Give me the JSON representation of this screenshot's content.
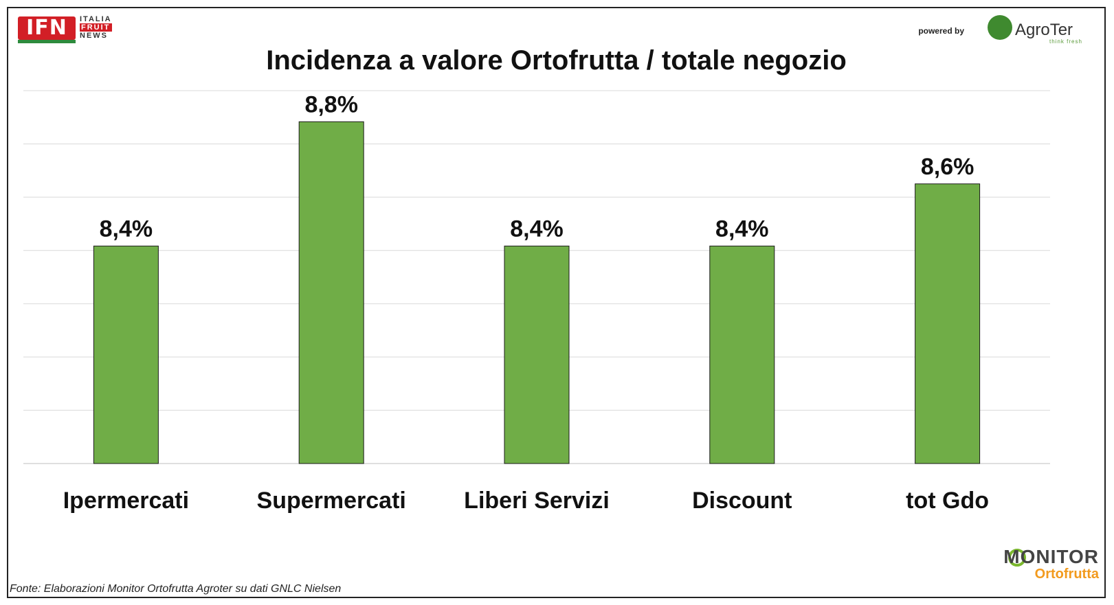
{
  "brand": {
    "ifn_box": "IFN",
    "ifn_words": [
      "ITALIA",
      "FRUIT",
      "NEWS"
    ],
    "powered_by": "powered by",
    "agroter_name": "AgroTer",
    "agroter_tag": "think fresh",
    "monitor_top": "MONITOR",
    "monitor_bottom": "Ortofrutta"
  },
  "source": "Fonte: Elaborazioni Monitor Ortofrutta Agroter su dati GNLC Nielsen",
  "colors": {
    "bar": "#70ad47",
    "bar_stroke": "#1a1a1a",
    "grid": "#d9d9d9",
    "text": "#111111"
  },
  "chart_data": {
    "type": "bar",
    "title": "Incidenza a valore Ortofrutta / totale negozio",
    "categories": [
      "Ipermercati",
      "Supermercati",
      "Liberi Servizi",
      "Discount",
      "tot Gdo"
    ],
    "values": [
      8.4,
      8.8,
      8.4,
      8.4,
      8.6
    ],
    "labels": [
      "8,4%",
      "8,8%",
      "8,4%",
      "8,4%",
      "8,6%"
    ],
    "grid": true,
    "legend": "none"
  }
}
